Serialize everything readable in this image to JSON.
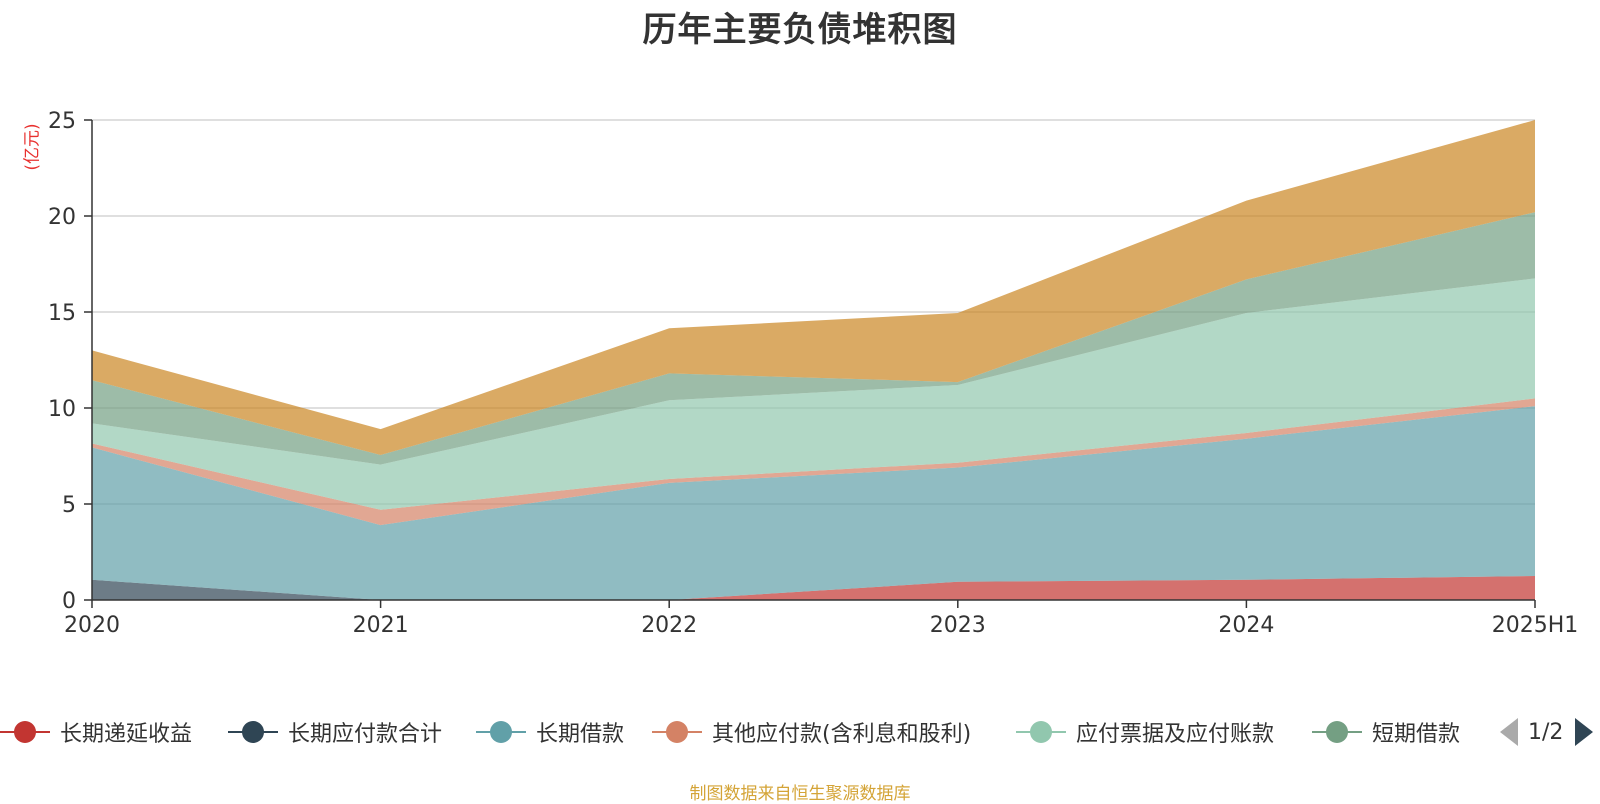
{
  "title": "历年主要负债堆积图",
  "unit_label": "(亿元)",
  "source": "制图数据来自恒生聚源数据库",
  "pager": {
    "text": "1/2"
  },
  "chart_data": {
    "type": "area",
    "stacked": true,
    "title": "历年主要负债堆积图",
    "ylabel": "(亿元)",
    "categories": [
      "2020",
      "2021",
      "2022",
      "2023",
      "2024",
      "2025H1"
    ],
    "ylim": [
      0,
      25
    ],
    "yticks": [
      0,
      5,
      10,
      15,
      20,
      25
    ],
    "grid": true,
    "legend_position": "bottom",
    "series": [
      {
        "name": "长期递延收益",
        "color": "#c23531",
        "values": [
          0,
          0,
          0,
          0.95,
          1.05,
          1.25
        ]
      },
      {
        "name": "长期应付款合计",
        "color": "#2f4554",
        "values": [
          1.05,
          0,
          0,
          0,
          0,
          0
        ]
      },
      {
        "name": "长期借款",
        "color": "#61a0a8",
        "values": [
          6.9,
          3.9,
          6.1,
          5.95,
          7.35,
          8.85
        ]
      },
      {
        "name": "其他应付款(含利息和股利)",
        "color": "#d48265",
        "values": [
          0.2,
          0.8,
          0.2,
          0.25,
          0.3,
          0.4
        ]
      },
      {
        "name": "应付票据及应付账款",
        "color": "#91c7ae",
        "values": [
          1.05,
          2.35,
          4.1,
          4.05,
          6.25,
          6.25
        ]
      },
      {
        "name": "短期借款",
        "color": "#749f83",
        "values": [
          2.25,
          0.5,
          1.4,
          0.15,
          1.75,
          3.45
        ]
      },
      {
        "name": "",
        "color": "#ca8622",
        "values": [
          1.55,
          1.35,
          2.35,
          3.6,
          4.1,
          4.8
        ]
      }
    ]
  }
}
